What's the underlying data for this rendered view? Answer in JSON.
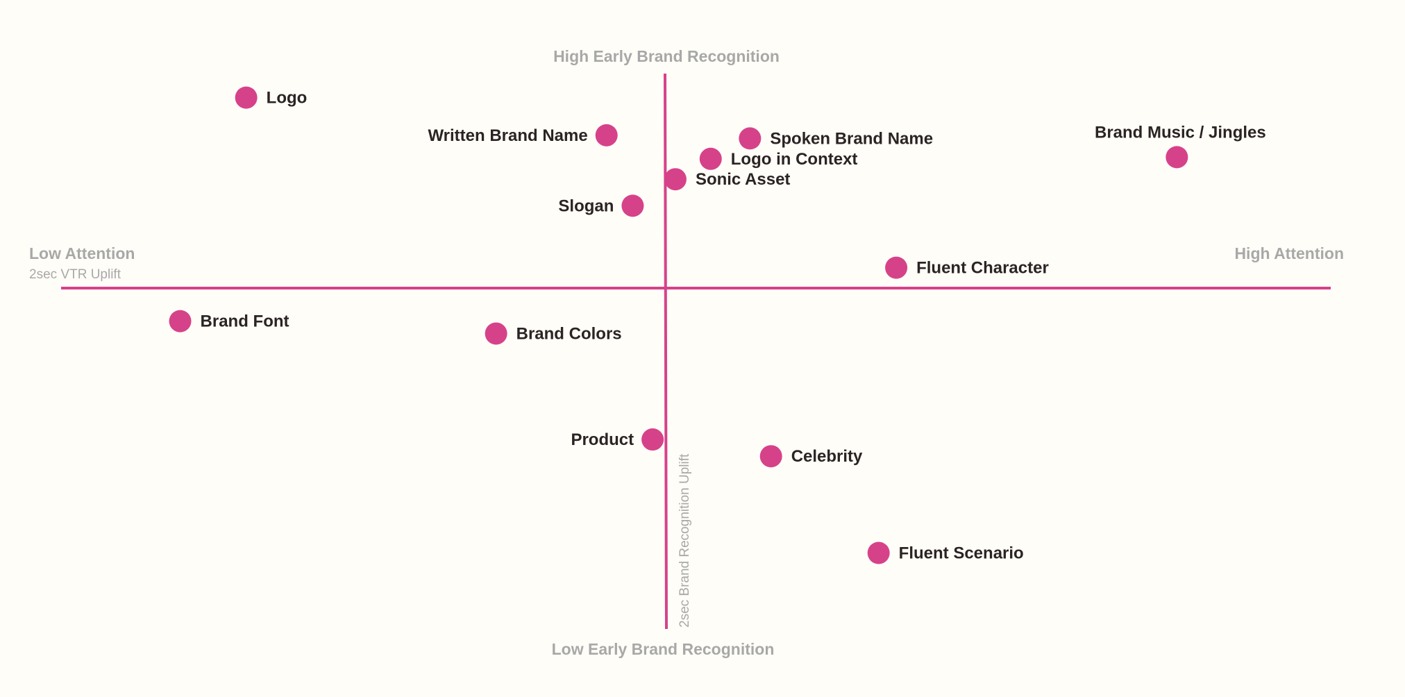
{
  "chart_data": {
    "type": "scatter",
    "title": "",
    "colors": {
      "accent": "#d6428a",
      "axis_text": "#a8a8a8",
      "label_text": "#2a2424",
      "background": "#fffdf7"
    },
    "axes": {
      "x_low_label": "Low Attention",
      "x_high_label": "High Attention",
      "x_metric": "2sec VTR Uplift",
      "y_high_label": "High Early Brand Recognition",
      "y_low_label": "Low Early Brand Recognition",
      "y_metric": "2sec Brand Recognition Uplift",
      "xlim": [
        -1,
        1
      ],
      "ylim": [
        -1,
        1
      ],
      "grid": false
    },
    "points": [
      {
        "label": "Logo",
        "x": -0.737,
        "y": 0.784
      },
      {
        "label": "Written Brand Name",
        "x": -0.104,
        "y": 0.629
      },
      {
        "label": "Spoken Brand Name",
        "x": 0.148,
        "y": 0.616
      },
      {
        "label": "Brand Music / Jingles",
        "x": 0.898,
        "y": 0.539
      },
      {
        "label": "Logo in Context",
        "x": 0.079,
        "y": 0.532
      },
      {
        "label": "Sonic Asset",
        "x": 0.017,
        "y": 0.448
      },
      {
        "label": "Slogan",
        "x": -0.058,
        "y": 0.339
      },
      {
        "label": "Fluent Character",
        "x": 0.405,
        "y": 0.084
      },
      {
        "label": "Brand Font",
        "x": -0.853,
        "y": -0.136
      },
      {
        "label": "Brand Colors",
        "x": -0.298,
        "y": -0.187
      },
      {
        "label": "Product",
        "x": -0.023,
        "y": -0.623
      },
      {
        "label": "Celebrity",
        "x": 0.185,
        "y": -0.692
      },
      {
        "label": "Fluent Scenario",
        "x": 0.374,
        "y": -1.09
      }
    ]
  }
}
